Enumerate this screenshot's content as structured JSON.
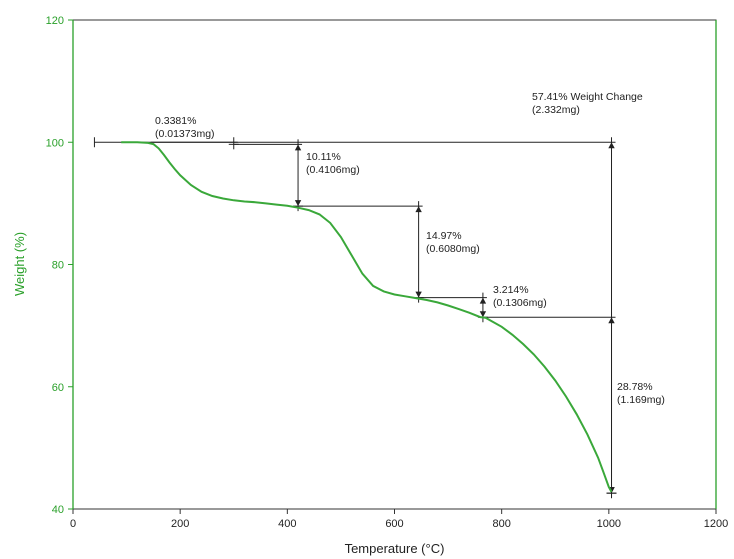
{
  "chart_data": {
    "type": "line",
    "xlabel": "Temperature (°C)",
    "ylabel": "Weight (%)",
    "xlim": [
      0,
      1200
    ],
    "ylim": [
      40,
      120
    ],
    "x_ticks": [
      0,
      200,
      400,
      600,
      800,
      1000,
      1200
    ],
    "y_ticks": [
      40,
      60,
      80,
      100,
      120
    ],
    "grid": false,
    "colors": {
      "series": "#3aa83a",
      "y_axis": "#2aa02a",
      "annotation": "#222222"
    },
    "series": [
      {
        "x": [
          90,
          120,
          140,
          150,
          160,
          170,
          180,
          190,
          200,
          220,
          240,
          260,
          280,
          300,
          320,
          340,
          360,
          380,
          400,
          420,
          440,
          460,
          480,
          500,
          520,
          540,
          560,
          580,
          600,
          620,
          640,
          660,
          680,
          700,
          720,
          740,
          760,
          770,
          780,
          800,
          820,
          840,
          860,
          880,
          900,
          920,
          940,
          960,
          980,
          990,
          1000,
          1005
        ],
        "y": [
          100.0,
          100.0,
          99.9,
          99.7,
          99.0,
          97.9,
          96.7,
          95.6,
          94.6,
          93.0,
          91.9,
          91.2,
          90.8,
          90.5,
          90.3,
          90.2,
          90.0,
          89.8,
          89.6,
          89.3,
          88.9,
          88.2,
          86.8,
          84.5,
          81.5,
          78.5,
          76.5,
          75.6,
          75.1,
          74.8,
          74.5,
          74.2,
          73.8,
          73.3,
          72.7,
          72.1,
          71.4,
          71.3,
          70.8,
          69.8,
          68.5,
          67.0,
          65.3,
          63.3,
          61.0,
          58.4,
          55.5,
          52.2,
          48.4,
          46.0,
          43.6,
          42.8
        ]
      }
    ],
    "annotations": [
      {
        "line1": "0.3381%",
        "line2": "(0.01373mg)"
      },
      {
        "line1": "10.11%",
        "line2": "(0.4106mg)"
      },
      {
        "line1": "14.97%",
        "line2": "(0.6080mg)"
      },
      {
        "line1": "3.214%",
        "line2": "(0.1306mg)"
      },
      {
        "line1": "28.78%",
        "line2": "(1.169mg)"
      },
      {
        "line1": "57.41% Weight Change",
        "line2": "(2.332mg)"
      }
    ],
    "steps": [
      {
        "x_start": 145,
        "x_end": 300,
        "y_top": 100.0,
        "y_bottom": 99.66
      },
      {
        "x_start": 300,
        "x_end": 420,
        "y_top": 99.66,
        "y_bottom": 89.55
      },
      {
        "x_start": 420,
        "x_end": 645,
        "y_top": 89.55,
        "y_bottom": 74.58
      },
      {
        "x_start": 645,
        "x_end": 765,
        "y_top": 74.58,
        "y_bottom": 71.37
      },
      {
        "x_start": 765,
        "x_end": 1005,
        "y_top": 71.37,
        "y_bottom": 42.59
      },
      {
        "x_start": 40,
        "x_end": 1005,
        "y_top": 100.0,
        "y_bottom": 42.59
      }
    ]
  }
}
